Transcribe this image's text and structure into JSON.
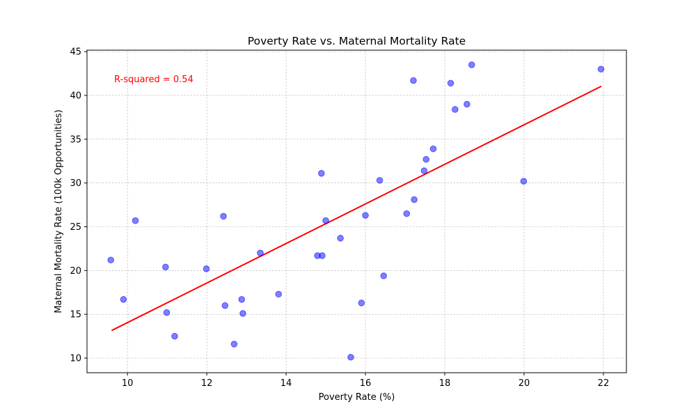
{
  "chart_data": {
    "type": "scatter",
    "title": "Poverty Rate vs. Maternal Mortality Rate",
    "xlabel": "Poverty Rate (%)",
    "ylabel": "Maternal Mortality Rate (100k Opportunities)",
    "xlim": [
      8.98,
      22.58
    ],
    "ylim": [
      8.33,
      45.17
    ],
    "xticks": [
      10,
      12,
      14,
      16,
      18,
      20,
      22
    ],
    "yticks": [
      10,
      15,
      20,
      25,
      30,
      35,
      40,
      45
    ],
    "grid": true,
    "colors": {
      "points": "#0000ff",
      "fit_line": "#ff0000",
      "annotation": "#ff0000"
    },
    "points": [
      {
        "x": 9.58,
        "y": 21.2
      },
      {
        "x": 9.9,
        "y": 16.7
      },
      {
        "x": 10.2,
        "y": 25.7
      },
      {
        "x": 10.96,
        "y": 20.4
      },
      {
        "x": 10.99,
        "y": 15.2
      },
      {
        "x": 11.19,
        "y": 12.5
      },
      {
        "x": 11.99,
        "y": 20.2
      },
      {
        "x": 12.42,
        "y": 26.2
      },
      {
        "x": 12.46,
        "y": 16.0
      },
      {
        "x": 12.69,
        "y": 11.6
      },
      {
        "x": 12.88,
        "y": 16.7
      },
      {
        "x": 12.91,
        "y": 15.1
      },
      {
        "x": 13.35,
        "y": 22.0
      },
      {
        "x": 13.81,
        "y": 17.3
      },
      {
        "x": 14.79,
        "y": 21.7
      },
      {
        "x": 14.89,
        "y": 31.1
      },
      {
        "x": 14.91,
        "y": 21.7
      },
      {
        "x": 15.0,
        "y": 25.7
      },
      {
        "x": 15.37,
        "y": 23.7
      },
      {
        "x": 15.63,
        "y": 10.1
      },
      {
        "x": 15.9,
        "y": 16.3
      },
      {
        "x": 16.0,
        "y": 26.3
      },
      {
        "x": 16.36,
        "y": 30.3
      },
      {
        "x": 16.46,
        "y": 19.4
      },
      {
        "x": 17.04,
        "y": 26.5
      },
      {
        "x": 17.21,
        "y": 41.7
      },
      {
        "x": 17.23,
        "y": 28.1
      },
      {
        "x": 17.48,
        "y": 31.4
      },
      {
        "x": 17.53,
        "y": 32.7
      },
      {
        "x": 17.71,
        "y": 33.9
      },
      {
        "x": 18.15,
        "y": 41.4
      },
      {
        "x": 18.26,
        "y": 38.4
      },
      {
        "x": 18.56,
        "y": 39.0
      },
      {
        "x": 18.68,
        "y": 43.5
      },
      {
        "x": 19.99,
        "y": 30.2
      },
      {
        "x": 21.94,
        "y": 43.0
      }
    ],
    "fit_line": {
      "x": [
        9.6,
        21.95
      ],
      "y": [
        13.15,
        41.05
      ]
    },
    "annotation": "R-squared = 0.54"
  }
}
